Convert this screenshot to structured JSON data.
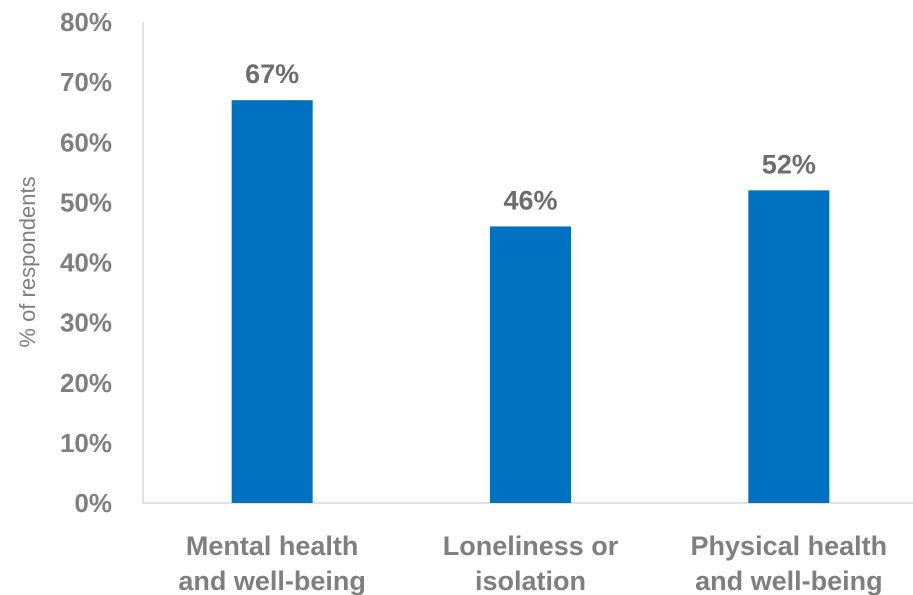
{
  "chart_data": {
    "type": "bar",
    "categories": [
      [
        "Mental health",
        "and well-being"
      ],
      [
        "Loneliness or",
        "isolation"
      ],
      [
        "Physical health",
        "and well-being"
      ]
    ],
    "values": [
      67,
      46,
      52
    ],
    "data_labels": [
      "67%",
      "46%",
      "52%"
    ],
    "ylabel": "% of respondents",
    "ylim": [
      0,
      80
    ],
    "yticks": [
      0,
      10,
      20,
      30,
      40,
      50,
      60,
      70,
      80
    ],
    "ytick_labels": [
      "0%",
      "10%",
      "20%",
      "30%",
      "40%",
      "50%",
      "60%",
      "70%",
      "80%"
    ],
    "grid": false,
    "legend": "none",
    "bar_color": "#0070c0",
    "axis_color": "#d9d9d9",
    "text_color": "#7f7f7f"
  }
}
